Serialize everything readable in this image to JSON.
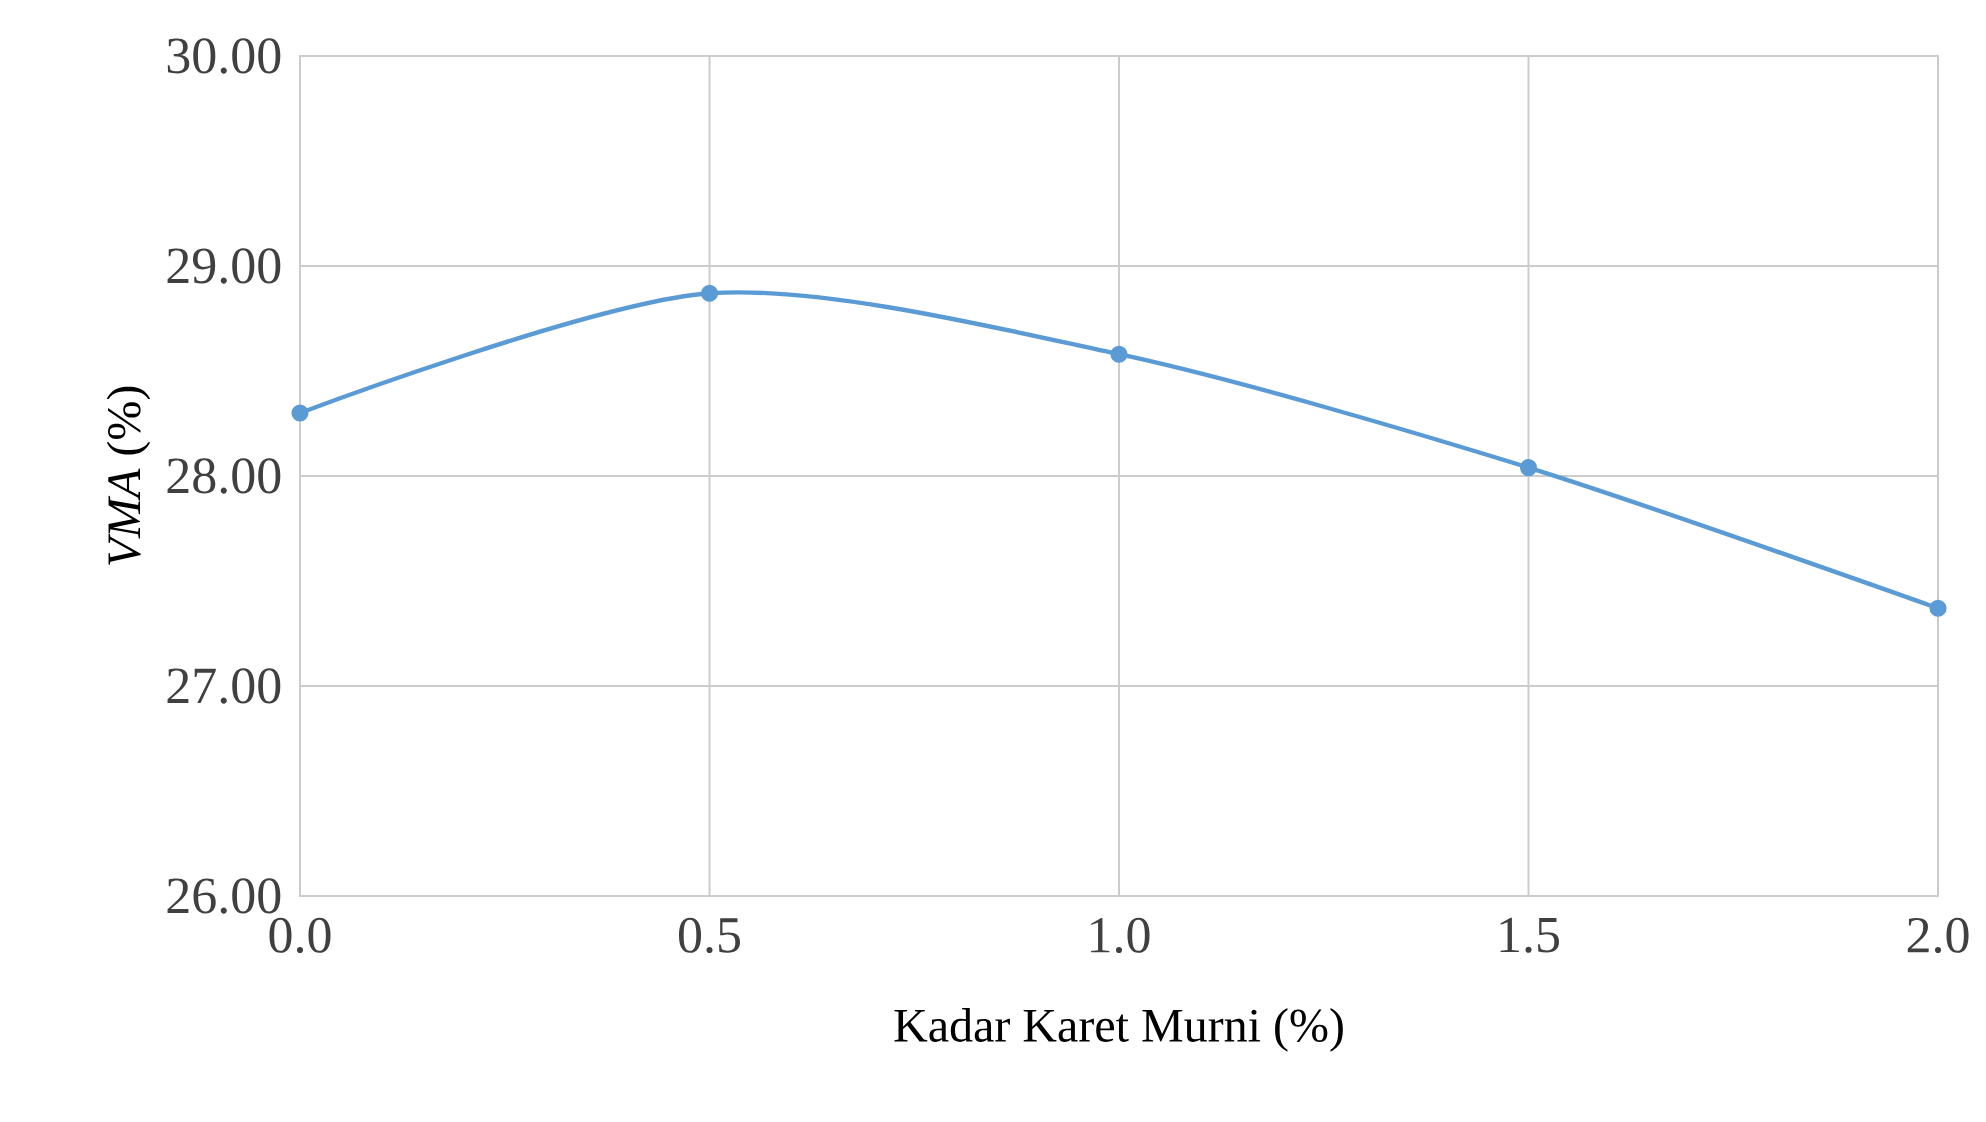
{
  "chart_data": {
    "type": "line",
    "xlabel": "Kadar Karet Murni (%)",
    "ylabel": "*VMA* (%)",
    "x": [
      0,
      0.5,
      1,
      1.5,
      2
    ],
    "series": [
      {
        "color": "#5b9bd5",
        "values": [
          28.3,
          28.87,
          28.58,
          28.04,
          27.37
        ]
      }
    ],
    "xlim": [
      0,
      2
    ],
    "ylim": [
      26,
      30
    ],
    "xticks": [
      {
        "value": 0,
        "label": "0.0"
      },
      {
        "value": 0.5,
        "label": "0.5"
      },
      {
        "value": 1,
        "label": "1.0"
      },
      {
        "value": 1.5,
        "label": "1.5"
      },
      {
        "value": 2,
        "label": "2.0"
      }
    ],
    "yticks": [
      {
        "value": 26,
        "label": "26.00"
      },
      {
        "value": 27,
        "label": "27.00"
      },
      {
        "value": 28,
        "label": "28.00"
      },
      {
        "value": 29,
        "label": "29.00"
      },
      {
        "value": 30,
        "label": "30.00"
      }
    ],
    "grid": true,
    "marker": "circle",
    "line_style": "solid"
  }
}
